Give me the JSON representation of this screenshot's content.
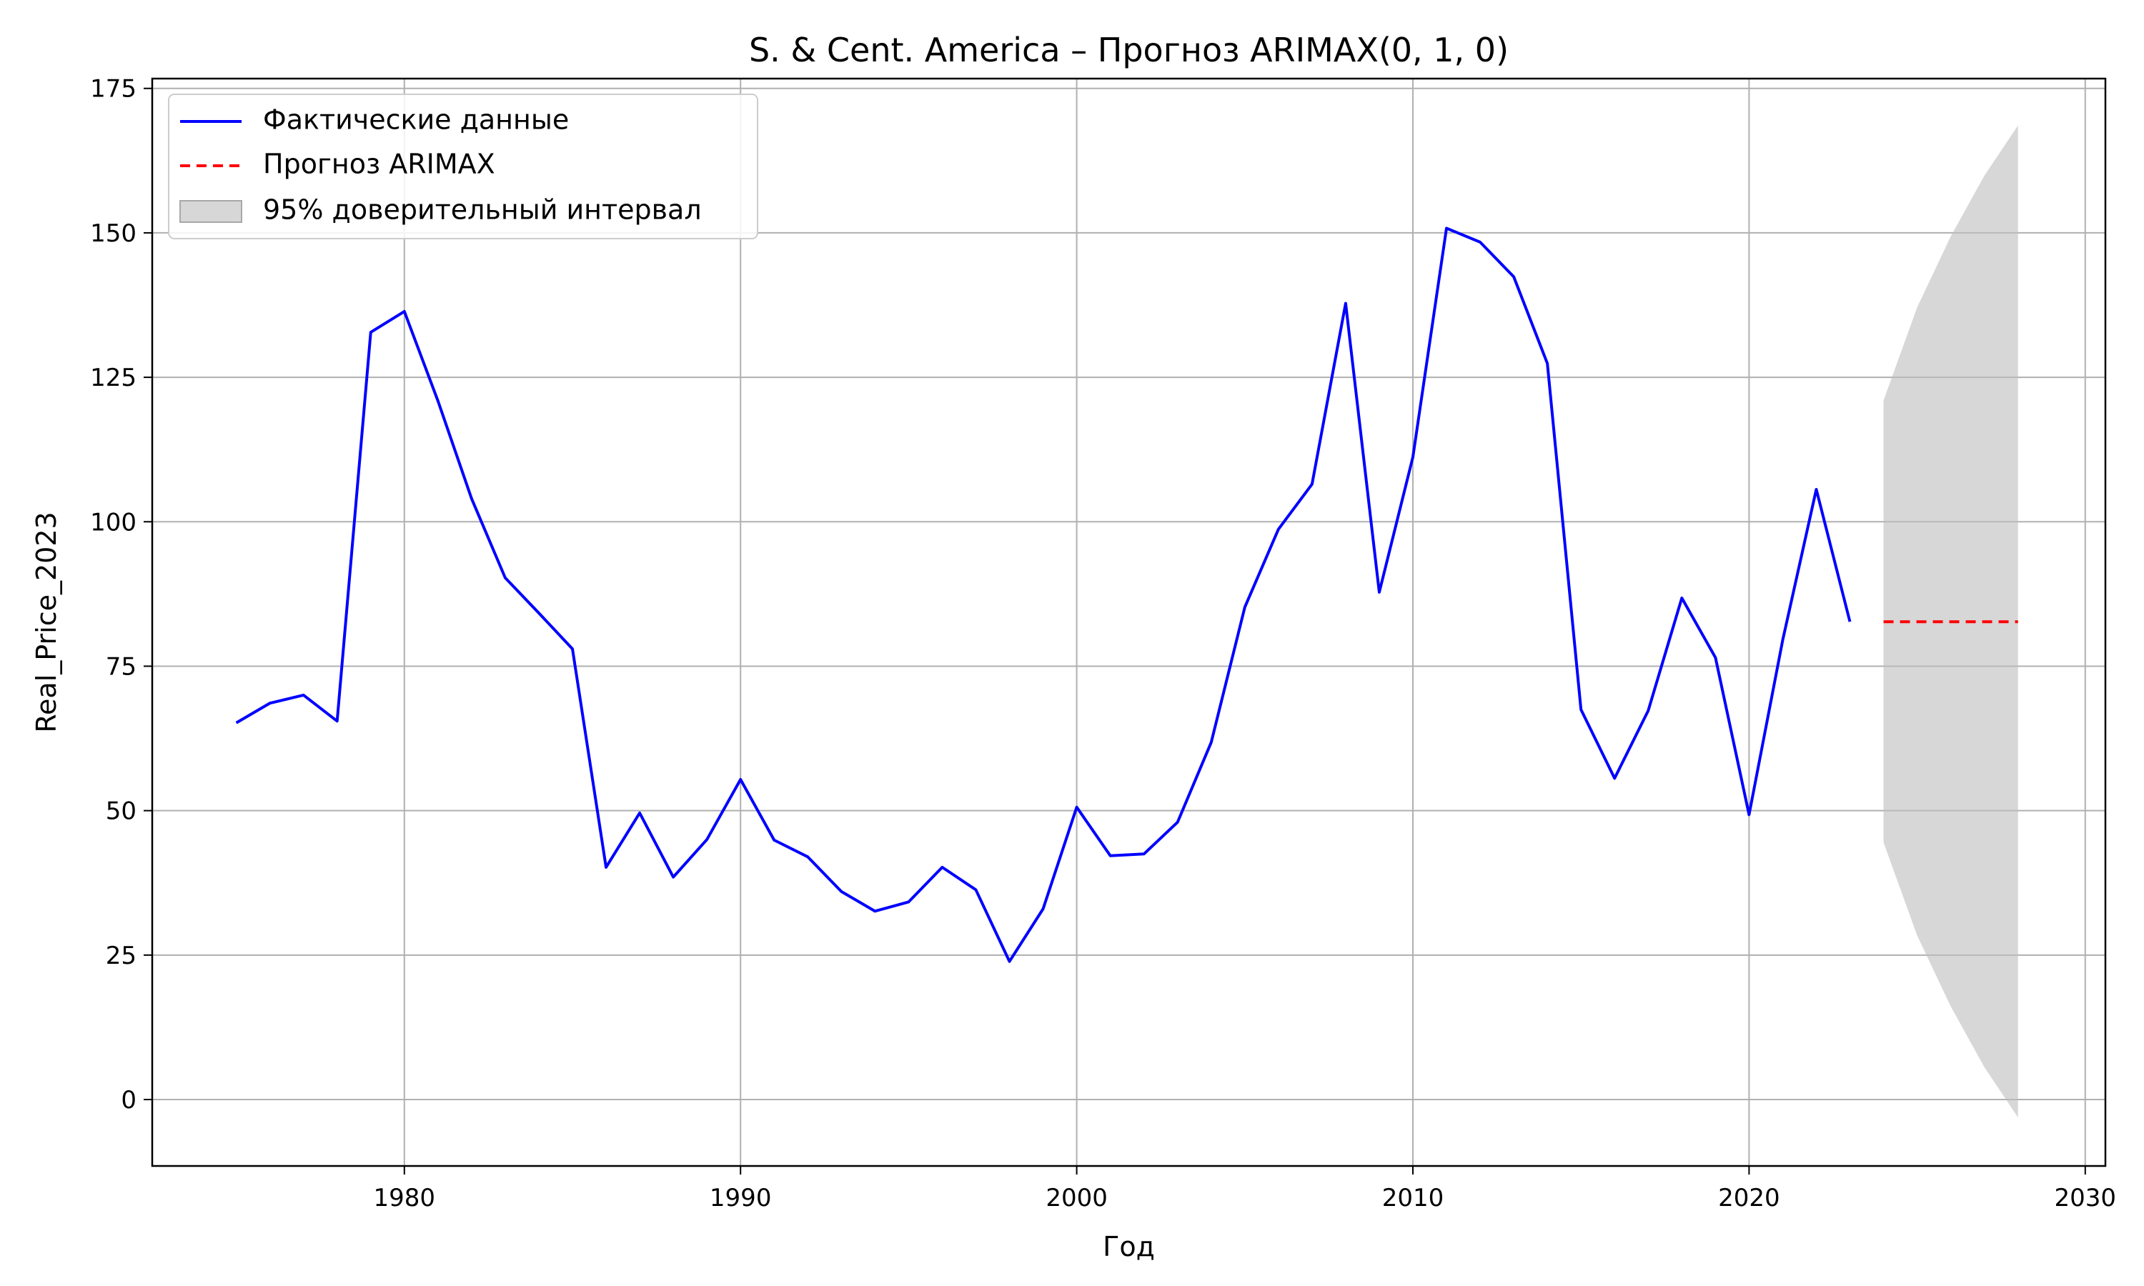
{
  "chart_data": {
    "type": "line",
    "title": "S. & Cent. America – Прогноз ARIMAX(0, 1, 0)",
    "xlabel": "Год",
    "ylabel": "Real_Price_2023",
    "xlim": [
      1972.5,
      2030.6
    ],
    "ylim": [
      -11.5,
      176.7
    ],
    "xticks": [
      1980,
      1990,
      2000,
      2010,
      2020,
      2030
    ],
    "yticks": [
      0,
      25,
      50,
      75,
      100,
      125,
      150,
      175
    ],
    "grid": true,
    "legend_position": "top-left",
    "series": [
      {
        "name": "Фактические данные",
        "style": "solid",
        "color": "#0000ff",
        "x": [
          1975,
          1976,
          1977,
          1978,
          1979,
          1980,
          1981,
          1982,
          1983,
          1984,
          1985,
          1986,
          1987,
          1988,
          1989,
          1990,
          1991,
          1992,
          1993,
          1994,
          1995,
          1996,
          1997,
          1998,
          1999,
          2000,
          2001,
          2002,
          2003,
          2004,
          2005,
          2006,
          2007,
          2008,
          2009,
          2010,
          2011,
          2012,
          2013,
          2014,
          2015,
          2016,
          2017,
          2018,
          2019,
          2020,
          2021,
          2022,
          2023
        ],
        "y": [
          65.2,
          68.6,
          70.0,
          65.5,
          132.8,
          136.4,
          120.9,
          104.0,
          90.3,
          84.2,
          78.0,
          40.2,
          49.6,
          38.5,
          45.0,
          55.4,
          44.9,
          42.0,
          36.0,
          32.6,
          34.2,
          40.2,
          36.3,
          23.9,
          33.0,
          50.6,
          42.2,
          42.5,
          48.0,
          61.8,
          85.2,
          98.7,
          106.5,
          137.8,
          87.8,
          111.2,
          150.8,
          148.4,
          142.4,
          127.4,
          67.5,
          55.6,
          67.3,
          86.8,
          76.5,
          49.3,
          79.5,
          105.6,
          82.7
        ]
      },
      {
        "name": "Прогноз ARIMAX",
        "style": "dashed",
        "color": "#ff0000",
        "x": [
          2024,
          2025,
          2026,
          2027,
          2028
        ],
        "y": [
          82.7,
          82.7,
          82.7,
          82.7,
          82.7
        ]
      }
    ],
    "confidence_interval": {
      "name": "95% доверительный интервал",
      "color": "#bfbfbf",
      "x": [
        2024,
        2025,
        2026,
        2027,
        2028
      ],
      "lower": [
        44.5,
        28.4,
        16.1,
        5.6,
        -3.1
      ],
      "upper": [
        121.0,
        137.1,
        149.4,
        159.9,
        168.6
      ]
    }
  }
}
